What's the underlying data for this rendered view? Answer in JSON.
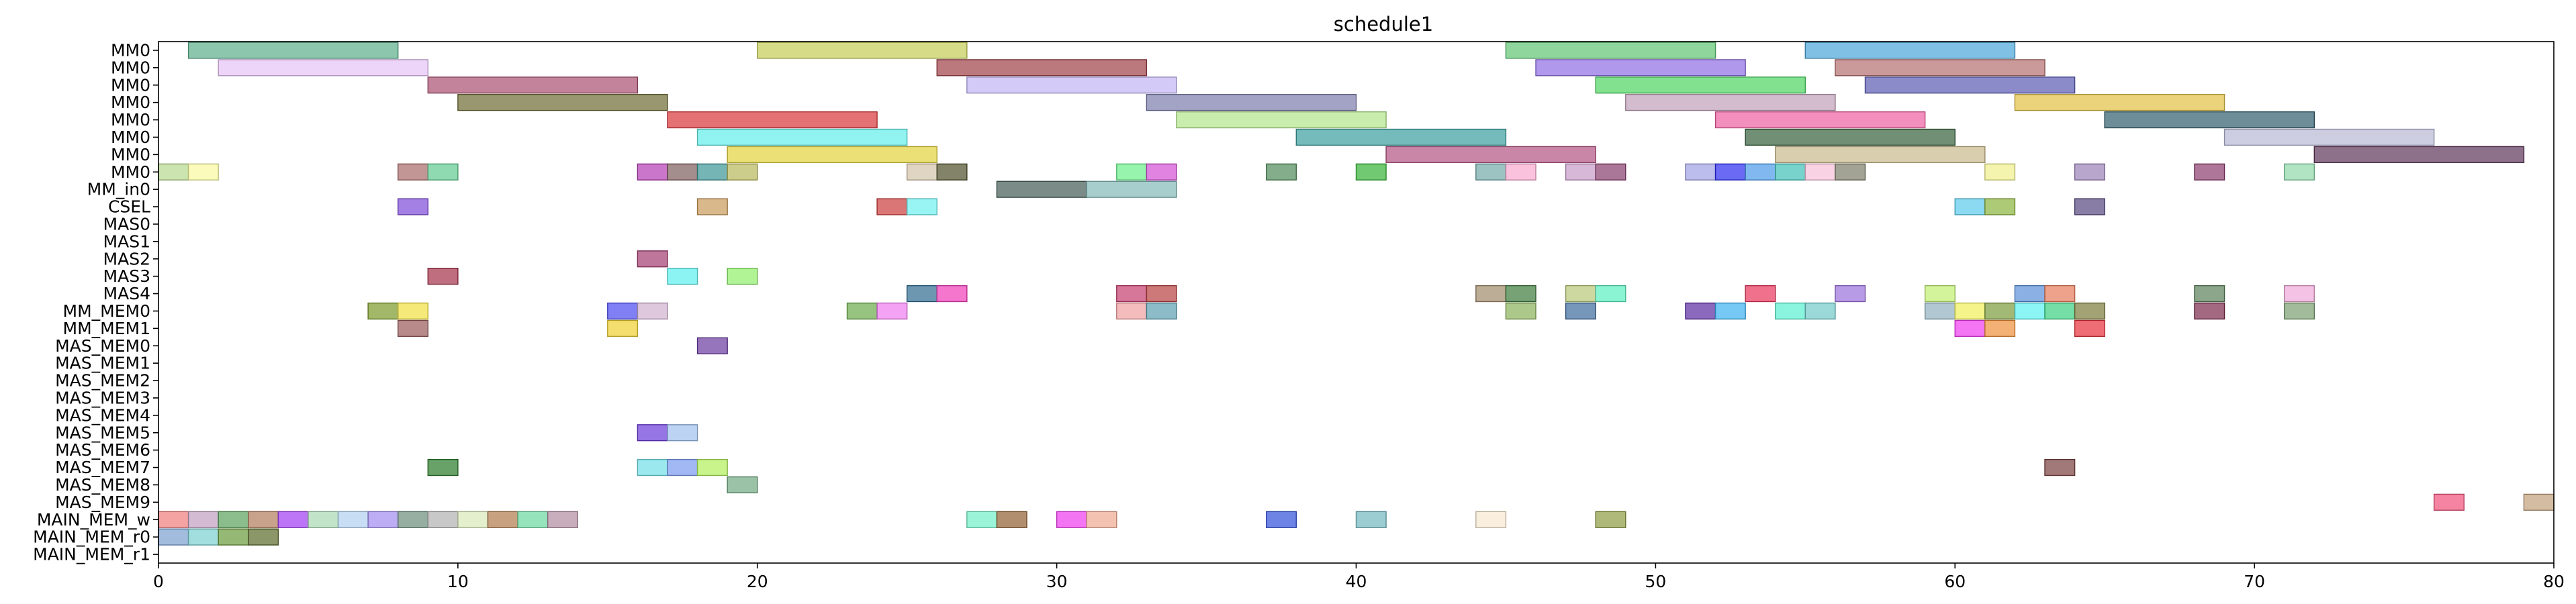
{
  "chart_data": {
    "type": "gantt",
    "title": "schedule1",
    "xlim": [
      0,
      80
    ],
    "x_ticks": [
      0,
      10,
      20,
      30,
      40,
      50,
      60,
      70,
      80
    ],
    "grid": false,
    "lanes": [
      "MM0",
      "MM0",
      "MM0",
      "MM0",
      "MM0",
      "MM0",
      "MM0",
      "MM0",
      "MM_in0",
      "CSEL",
      "MAS0",
      "MAS1",
      "MAS2",
      "MAS3",
      "MAS4",
      "MM_MEM0",
      "MM_MEM1",
      "MAS_MEM0",
      "MAS_MEM1",
      "MAS_MEM2",
      "MAS_MEM3",
      "MAS_MEM4",
      "MAS_MEM5",
      "MAS_MEM6",
      "MAS_MEM7",
      "MAS_MEM8",
      "MAS_MEM9",
      "MAIN_MEM_w",
      "MAIN_MEM_r0",
      "MAIN_MEM_r1"
    ],
    "tasks": [
      {
        "lane": 0,
        "start": 1,
        "end": 8,
        "color": "#5aae8a"
      },
      {
        "lane": 0,
        "start": 20,
        "end": 27,
        "color": "#c4cc55"
      },
      {
        "lane": 0,
        "start": 45,
        "end": 52,
        "color": "#5ec472"
      },
      {
        "lane": 0,
        "start": 55,
        "end": 62,
        "color": "#4aa5d8"
      },
      {
        "lane": 1,
        "start": 2,
        "end": 9,
        "color": "#e6c2f7"
      },
      {
        "lane": 1,
        "start": 26,
        "end": 33,
        "color": "#9e3f46"
      },
      {
        "lane": 1,
        "start": 46,
        "end": 53,
        "color": "#8e6ee4"
      },
      {
        "lane": 1,
        "start": 56,
        "end": 63,
        "color": "#b36d6d"
      },
      {
        "lane": 2,
        "start": 9,
        "end": 16,
        "color": "#aa5070"
      },
      {
        "lane": 2,
        "start": 27,
        "end": 34,
        "color": "#c1b4f3"
      },
      {
        "lane": 2,
        "start": 48,
        "end": 55,
        "color": "#4bd460"
      },
      {
        "lane": 2,
        "start": 57,
        "end": 64,
        "color": "#5a5ab4"
      },
      {
        "lane": 3,
        "start": 10,
        "end": 17,
        "color": "#6c6b32"
      },
      {
        "lane": 3,
        "start": 33,
        "end": 40,
        "color": "#7c7cac"
      },
      {
        "lane": 3,
        "start": 49,
        "end": 56,
        "color": "#c0a0b8"
      },
      {
        "lane": 3,
        "start": 62,
        "end": 69,
        "color": "#e3c143"
      },
      {
        "lane": 4,
        "start": 17,
        "end": 24,
        "color": "#d9363a"
      },
      {
        "lane": 4,
        "start": 34,
        "end": 41,
        "color": "#b1e68a"
      },
      {
        "lane": 4,
        "start": 52,
        "end": 59,
        "color": "#ed5fa0"
      },
      {
        "lane": 4,
        "start": 65,
        "end": 72,
        "color": "#2f5d6c"
      },
      {
        "lane": 5,
        "start": 18,
        "end": 25,
        "color": "#62eee8"
      },
      {
        "lane": 5,
        "start": 38,
        "end": 45,
        "color": "#3c9e9e"
      },
      {
        "lane": 5,
        "start": 53,
        "end": 60,
        "color": "#34603a"
      },
      {
        "lane": 5,
        "start": 69,
        "end": 76,
        "color": "#b8b8d6"
      },
      {
        "lane": 6,
        "start": 19,
        "end": 26,
        "color": "#e2d33a"
      },
      {
        "lane": 6,
        "start": 41,
        "end": 48,
        "color": "#b25282"
      },
      {
        "lane": 6,
        "start": 54,
        "end": 61,
        "color": "#c9b98a"
      },
      {
        "lane": 6,
        "start": 72,
        "end": 79,
        "color": "#5c3358"
      },
      {
        "lane": 7,
        "start": 0,
        "end": 1,
        "color": "#b7d88d"
      },
      {
        "lane": 7,
        "start": 1,
        "end": 2,
        "color": "#fafaa0"
      },
      {
        "lane": 7,
        "start": 8,
        "end": 9,
        "color": "#aa6a6a"
      },
      {
        "lane": 7,
        "start": 9,
        "end": 10,
        "color": "#5fcb8f"
      },
      {
        "lane": 7,
        "start": 16,
        "end": 17,
        "color": "#b33cb3"
      },
      {
        "lane": 7,
        "start": 17,
        "end": 18,
        "color": "#7e5c5c"
      },
      {
        "lane": 7,
        "start": 18,
        "end": 19,
        "color": "#3c9595"
      },
      {
        "lane": 7,
        "start": 19,
        "end": 20,
        "color": "#b8b85a"
      },
      {
        "lane": 7,
        "start": 25,
        "end": 26,
        "color": "#d3c2a8"
      },
      {
        "lane": 7,
        "start": 26,
        "end": 27,
        "color": "#4e4e2a"
      },
      {
        "lane": 7,
        "start": 32,
        "end": 33,
        "color": "#6af08a"
      },
      {
        "lane": 7,
        "start": 33,
        "end": 34,
        "color": "#d44fd4"
      },
      {
        "lane": 7,
        "start": 37,
        "end": 38,
        "color": "#4f8a5a"
      },
      {
        "lane": 7,
        "start": 40,
        "end": 41,
        "color": "#34b334"
      },
      {
        "lane": 7,
        "start": 44,
        "end": 45,
        "color": "#74a8a8"
      },
      {
        "lane": 7,
        "start": 45,
        "end": 46,
        "color": "#f9a8cf"
      },
      {
        "lane": 7,
        "start": 47,
        "end": 48,
        "color": "#c89ac8"
      },
      {
        "lane": 7,
        "start": 48,
        "end": 49,
        "color": "#873d6c"
      },
      {
        "lane": 7,
        "start": 51,
        "end": 52,
        "color": "#a0a0e6"
      },
      {
        "lane": 7,
        "start": 52,
        "end": 53,
        "color": "#2b2bf0"
      },
      {
        "lane": 7,
        "start": 53,
        "end": 54,
        "color": "#4b9ae8"
      },
      {
        "lane": 7,
        "start": 54,
        "end": 55,
        "color": "#3fc0b8"
      },
      {
        "lane": 7,
        "start": 55,
        "end": 56,
        "color": "#f6c0d8"
      },
      {
        "lane": 7,
        "start": 56,
        "end": 57,
        "color": "#7c7c68"
      },
      {
        "lane": 7,
        "start": 61,
        "end": 62,
        "color": "#f0f08c"
      },
      {
        "lane": 7,
        "start": 64,
        "end": 65,
        "color": "#9a80b8"
      },
      {
        "lane": 7,
        "start": 68,
        "end": 69,
        "color": "#8c3c6c"
      },
      {
        "lane": 7,
        "start": 71,
        "end": 72,
        "color": "#8ed8a8"
      },
      {
        "lane": 8,
        "start": 28,
        "end": 31,
        "color": "#425a55"
      },
      {
        "lane": 8,
        "start": 31,
        "end": 34,
        "color": "#82b8b8"
      },
      {
        "lane": 9,
        "start": 8,
        "end": 9,
        "color": "#7d4ad9"
      },
      {
        "lane": 9,
        "start": 18,
        "end": 19,
        "color": "#c99a5a"
      },
      {
        "lane": 9,
        "start": 24,
        "end": 25,
        "color": "#cc3c3c"
      },
      {
        "lane": 9,
        "start": 25,
        "end": 26,
        "color": "#6df0f0"
      },
      {
        "lane": 9,
        "start": 60,
        "end": 61,
        "color": "#5acbeb"
      },
      {
        "lane": 9,
        "start": 61,
        "end": 62,
        "color": "#8ab33c"
      },
      {
        "lane": 9,
        "start": 64,
        "end": 65,
        "color": "#55467e"
      },
      {
        "lane": 12,
        "start": 16,
        "end": 17,
        "color": "#a33c70"
      },
      {
        "lane": 13,
        "start": 9,
        "end": 10,
        "color": "#a33048"
      },
      {
        "lane": 13,
        "start": 17,
        "end": 18,
        "color": "#5cf0f0"
      },
      {
        "lane": 13,
        "start": 19,
        "end": 20,
        "color": "#8ff06a"
      },
      {
        "lane": 14,
        "start": 25,
        "end": 26,
        "color": "#2f6a8e"
      },
      {
        "lane": 14,
        "start": 26,
        "end": 27,
        "color": "#f03cb8"
      },
      {
        "lane": 14,
        "start": 32,
        "end": 33,
        "color": "#c43c6c"
      },
      {
        "lane": 14,
        "start": 33,
        "end": 34,
        "color": "#b84040"
      },
      {
        "lane": 14,
        "start": 44,
        "end": 45,
        "color": "#a08a6a"
      },
      {
        "lane": 14,
        "start": 45,
        "end": 46,
        "color": "#3c7a3c"
      },
      {
        "lane": 14,
        "start": 47,
        "end": 48,
        "color": "#b8c878"
      },
      {
        "lane": 14,
        "start": 48,
        "end": 49,
        "color": "#5af0c0"
      },
      {
        "lane": 14,
        "start": 53,
        "end": 54,
        "color": "#e8345a"
      },
      {
        "lane": 14,
        "start": 56,
        "end": 57,
        "color": "#9a70dc"
      },
      {
        "lane": 14,
        "start": 59,
        "end": 60,
        "color": "#c0f070"
      },
      {
        "lane": 14,
        "start": 62,
        "end": 63,
        "color": "#5a90d8"
      },
      {
        "lane": 14,
        "start": 63,
        "end": 64,
        "color": "#e87a5a"
      },
      {
        "lane": 14,
        "start": 68,
        "end": 69,
        "color": "#5a805a"
      },
      {
        "lane": 14,
        "start": 71,
        "end": 72,
        "color": "#f0a8d8"
      },
      {
        "lane": 15,
        "start": 7,
        "end": 8,
        "color": "#7a9a28"
      },
      {
        "lane": 15,
        "start": 8,
        "end": 9,
        "color": "#f0e040"
      },
      {
        "lane": 15,
        "start": 15,
        "end": 16,
        "color": "#4a4af0"
      },
      {
        "lane": 15,
        "start": 16,
        "end": 17,
        "color": "#d0b0d0"
      },
      {
        "lane": 15,
        "start": 23,
        "end": 24,
        "color": "#6aaa4a"
      },
      {
        "lane": 15,
        "start": 24,
        "end": 25,
        "color": "#f07af0"
      },
      {
        "lane": 15,
        "start": 32,
        "end": 33,
        "color": "#f0a0a0"
      },
      {
        "lane": 15,
        "start": 33,
        "end": 34,
        "color": "#5aa0b0"
      },
      {
        "lane": 15,
        "start": 45,
        "end": 46,
        "color": "#8ab05a"
      },
      {
        "lane": 15,
        "start": 47,
        "end": 48,
        "color": "#3a6a9a"
      },
      {
        "lane": 15,
        "start": 51,
        "end": 52,
        "color": "#5a2aa0"
      },
      {
        "lane": 15,
        "start": 52,
        "end": 53,
        "color": "#3ab0f0"
      },
      {
        "lane": 15,
        "start": 54,
        "end": 55,
        "color": "#5af0d0"
      },
      {
        "lane": 15,
        "start": 55,
        "end": 56,
        "color": "#70c8c8"
      },
      {
        "lane": 15,
        "start": 59,
        "end": 60,
        "color": "#90b0c0"
      },
      {
        "lane": 15,
        "start": 60,
        "end": 61,
        "color": "#f0f05a"
      },
      {
        "lane": 15,
        "start": 61,
        "end": 62,
        "color": "#7a9a3a"
      },
      {
        "lane": 15,
        "start": 62,
        "end": 63,
        "color": "#5af0f0"
      },
      {
        "lane": 15,
        "start": 63,
        "end": 64,
        "color": "#3ad080"
      },
      {
        "lane": 15,
        "start": 64,
        "end": 65,
        "color": "#7a7a3a"
      },
      {
        "lane": 15,
        "start": 68,
        "end": 69,
        "color": "#7a2a4a"
      },
      {
        "lane": 15,
        "start": 71,
        "end": 72,
        "color": "#7aa070"
      },
      {
        "lane": 16,
        "start": 8,
        "end": 9,
        "color": "#9a5a5a"
      },
      {
        "lane": 16,
        "start": 15,
        "end": 16,
        "color": "#f0d030"
      },
      {
        "lane": 16,
        "start": 60,
        "end": 61,
        "color": "#f03cf0"
      },
      {
        "lane": 16,
        "start": 61,
        "end": 62,
        "color": "#f0903a"
      },
      {
        "lane": 16,
        "start": 64,
        "end": 65,
        "color": "#e8303a"
      },
      {
        "lane": 17,
        "start": 18,
        "end": 19,
        "color": "#6a3aa0"
      },
      {
        "lane": 22,
        "start": 16,
        "end": 17,
        "color": "#6a3ad8"
      },
      {
        "lane": 22,
        "start": 17,
        "end": 18,
        "color": "#a0c0f0"
      },
      {
        "lane": 24,
        "start": 9,
        "end": 10,
        "color": "#2a7a2a"
      },
      {
        "lane": 24,
        "start": 16,
        "end": 17,
        "color": "#70e0e8"
      },
      {
        "lane": 24,
        "start": 17,
        "end": 18,
        "color": "#7a9af0"
      },
      {
        "lane": 24,
        "start": 18,
        "end": 19,
        "color": "#b0f05a"
      },
      {
        "lane": 24,
        "start": 63,
        "end": 64,
        "color": "#7a4040"
      },
      {
        "lane": 25,
        "start": 19,
        "end": 20,
        "color": "#70a880"
      },
      {
        "lane": 26,
        "start": 76,
        "end": 77,
        "color": "#f0507a"
      },
      {
        "lane": 26,
        "start": 79,
        "end": 80,
        "color": "#c0a07a"
      },
      {
        "lane": 27,
        "start": 0,
        "end": 1,
        "color": "#f07a7a"
      },
      {
        "lane": 27,
        "start": 1,
        "end": 2,
        "color": "#c0a0c0"
      },
      {
        "lane": 27,
        "start": 2,
        "end": 3,
        "color": "#5aa05a"
      },
      {
        "lane": 27,
        "start": 3,
        "end": 4,
        "color": "#b07a5a"
      },
      {
        "lane": 27,
        "start": 4,
        "end": 5,
        "color": "#a03af0"
      },
      {
        "lane": 27,
        "start": 5,
        "end": 6,
        "color": "#a8d8b0"
      },
      {
        "lane": 27,
        "start": 6,
        "end": 7,
        "color": "#b0d0f0"
      },
      {
        "lane": 27,
        "start": 7,
        "end": 8,
        "color": "#a08af0"
      },
      {
        "lane": 27,
        "start": 8,
        "end": 9,
        "color": "#6a8a7a"
      },
      {
        "lane": 27,
        "start": 9,
        "end": 10,
        "color": "#b0b0b0"
      },
      {
        "lane": 27,
        "start": 10,
        "end": 11,
        "color": "#d8e8b8"
      },
      {
        "lane": 27,
        "start": 11,
        "end": 12,
        "color": "#b07a4a"
      },
      {
        "lane": 27,
        "start": 12,
        "end": 13,
        "color": "#6ad8a0"
      },
      {
        "lane": 27,
        "start": 13,
        "end": 14,
        "color": "#b08aa0"
      },
      {
        "lane": 27,
        "start": 27,
        "end": 28,
        "color": "#70f0c8"
      },
      {
        "lane": 27,
        "start": 28,
        "end": 29,
        "color": "#906030"
      },
      {
        "lane": 27,
        "start": 30,
        "end": 31,
        "color": "#f03af0"
      },
      {
        "lane": 27,
        "start": 31,
        "end": 32,
        "color": "#f0a890"
      },
      {
        "lane": 27,
        "start": 37,
        "end": 38,
        "color": "#3050d8"
      },
      {
        "lane": 27,
        "start": 40,
        "end": 41,
        "color": "#70b8c0"
      },
      {
        "lane": 27,
        "start": 44,
        "end": 45,
        "color": "#f8e8d0"
      },
      {
        "lane": 27,
        "start": 48,
        "end": 49,
        "color": "#8a9a40"
      },
      {
        "lane": 28,
        "start": 0,
        "end": 1,
        "color": "#7aa0d0"
      },
      {
        "lane": 28,
        "start": 1,
        "end": 2,
        "color": "#7ad0d0"
      },
      {
        "lane": 28,
        "start": 2,
        "end": 3,
        "color": "#6a9a3a"
      },
      {
        "lane": 28,
        "start": 3,
        "end": 4,
        "color": "#5a6a2a"
      }
    ]
  }
}
